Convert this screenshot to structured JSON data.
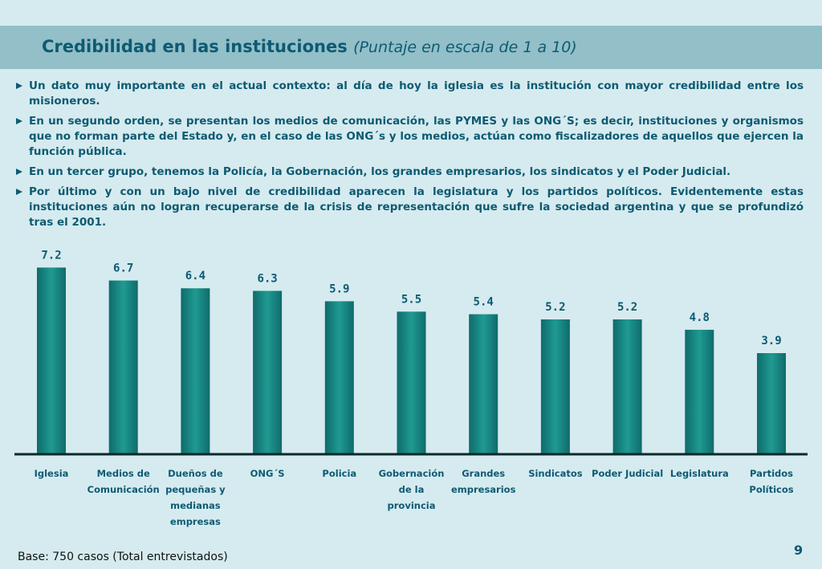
{
  "header": {
    "title": "Credibilidad en las instituciones",
    "subtitle": "(Puntaje en escala de 1 a 10)"
  },
  "bullets": [
    "Un dato muy importante en el actual contexto: al día de hoy la iglesia es la institución con mayor credibilidad entre los misioneros.",
    "En un segundo orden, se presentan los medios de comunicación, las PYMES y las ONG´S; es decir, instituciones y organismos que no forman parte del Estado y, en el caso de las ONG´s y los medios, actúan como fiscalizadores de aquellos que ejercen la función pública.",
    "En un tercer grupo, tenemos la Policía, la Gobernación, los grandes empresarios, los sindicatos y el Poder Judicial.",
    "Por último y con un bajo nivel de credibilidad aparecen la legislatura y los partidos políticos. Evidentemente estas instituciones aún no logran recuperarse de la crisis de representación que sufre la sociedad argentina y que se profundizó tras el 2001."
  ],
  "chart_data": {
    "type": "bar",
    "categories": [
      [
        "Iglesia"
      ],
      [
        "Medios de",
        "Comunicación"
      ],
      [
        "Dueños de",
        "pequeñas y",
        "medianas",
        "empresas"
      ],
      [
        "ONG´S"
      ],
      [
        "Policia"
      ],
      [
        "Gobernación",
        "de la",
        "provincia"
      ],
      [
        "Grandes",
        "empresarios"
      ],
      [
        "Sindicatos"
      ],
      [
        "Poder Judicial"
      ],
      [
        "Legislatura"
      ],
      [
        "Partidos",
        "Políticos"
      ]
    ],
    "values": [
      7.2,
      6.7,
      6.4,
      6.3,
      5.9,
      5.5,
      5.4,
      5.2,
      5.2,
      4.8,
      3.9
    ],
    "value_labels": [
      "7.2",
      "6.7",
      "6.4",
      "6.3",
      "5.9",
      "5.5",
      "5.4",
      "5.2",
      "5.2",
      "4.8",
      "3.9"
    ],
    "ylim": [
      0,
      7.8
    ],
    "grid": false,
    "bar_color": "#0f6b6b",
    "bar_highlight": "#1f9a92",
    "label_color": "#0e5a72"
  },
  "footer": {
    "base_note": "Base: 750 casos (Total entrevistados)",
    "page_number": "9"
  }
}
